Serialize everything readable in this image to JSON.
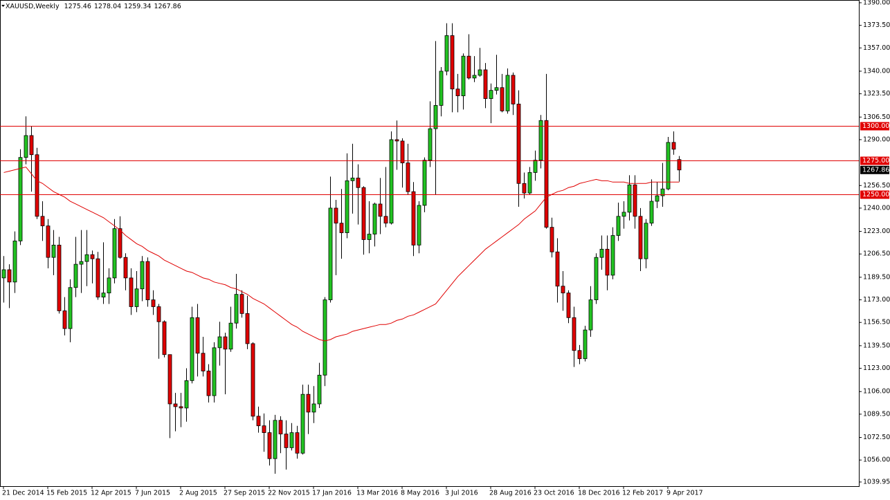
{
  "chart_data": {
    "type": "candlestick",
    "title": "XAUUSD,Weekly",
    "categories": [
      "21 Dec 2014",
      null,
      null,
      null,
      null,
      null,
      null,
      null,
      "15 Feb 2015",
      null,
      null,
      null,
      null,
      null,
      null,
      null,
      "12 Apr 2015",
      null,
      null,
      null,
      null,
      null,
      null,
      null,
      "7 Jun 2015",
      null,
      null,
      null,
      null,
      null,
      null,
      null,
      "2 Aug 2015",
      null,
      null,
      null,
      null,
      null,
      null,
      null,
      "27 Sep 2015",
      null,
      null,
      null,
      null,
      null,
      null,
      null,
      "22 Nov 2015",
      null,
      null,
      null,
      null,
      null,
      null,
      null,
      "17 Jan 2016",
      null,
      null,
      null,
      null,
      null,
      null,
      null,
      "13 Mar 2016",
      null,
      null,
      null,
      null,
      null,
      null,
      null,
      "8 May 2016",
      null,
      null,
      null,
      null,
      null,
      null,
      null,
      "3 Jul 2016",
      null,
      null,
      null,
      null,
      null,
      null,
      null,
      "28 Aug 2016",
      null,
      null,
      null,
      null,
      null,
      null,
      null,
      "23 Oct 2016",
      null,
      null,
      null,
      null,
      null,
      null,
      null,
      "18 Dec 2016",
      null,
      null,
      null,
      null,
      null,
      null,
      null,
      "12 Feb 2017",
      null,
      null,
      null,
      null,
      null,
      null,
      null,
      "9 Apr 2017",
      null,
      null
    ],
    "open": [
      1189,
      1195,
      1186,
      1216,
      1277,
      1293,
      1279,
      1234,
      1227,
      1204,
      1213,
      1165,
      1152,
      1182,
      1199,
      1201,
      1206,
      1203,
      1175,
      1178,
      1189,
      1225,
      1204,
      1189,
      1168,
      1181,
      1201,
      1173,
      1168,
      1157,
      1133,
      1097,
      1095,
      1094,
      1114,
      1160,
      1134,
      1121,
      1103,
      1138,
      1146,
      1137,
      1156,
      1177,
      1163,
      1141,
      1088,
      1081,
      1076,
      1057,
      1085,
      1075,
      1065,
      1076,
      1061,
      1104,
      1091,
      1097,
      1118,
      1173,
      1240,
      1229,
      1222,
      1260,
      1262,
      1255,
      1217,
      1221,
      1243,
      1234,
      1229,
      1290,
      1289,
      1273,
      1252,
      1213,
      1242,
      1275,
      1298,
      1315,
      1340,
      1366,
      1327,
      1322,
      1351,
      1335,
      1337,
      1341,
      1320,
      1326,
      1328,
      1311,
      1337,
      1316,
      1258,
      1251,
      1266,
      1275,
      1304,
      1226,
      1208,
      1183,
      1178,
      1160,
      1136,
      1130,
      1151,
      1173,
      1204,
      1210,
      1191,
      1220,
      1234,
      1237,
      1257,
      1234,
      1203,
      1229,
      1245,
      1249,
      1254,
      1288,
      1275.46
    ],
    "high": [
      1205,
      1199,
      1223,
      1283,
      1307,
      1300,
      1284,
      1245,
      1232,
      1224,
      1219,
      1175,
      1188,
      1219,
      1224,
      1224,
      1209,
      1208,
      1215,
      1196,
      1232,
      1234,
      1207,
      1196,
      1194,
      1205,
      1204,
      1180,
      1170,
      1158,
      1133,
      1105,
      1105,
      1123,
      1168,
      1170,
      1146,
      1126,
      1142,
      1157,
      1149,
      1168,
      1192,
      1180,
      1176,
      1142,
      1095,
      1090,
      1085,
      1089,
      1088,
      1085,
      1083,
      1081,
      1111,
      1111,
      1110,
      1127,
      1175,
      1263,
      1246,
      1254,
      1280,
      1287,
      1272,
      1256,
      1245,
      1244,
      1262,
      1270,
      1296,
      1304,
      1291,
      1287,
      1259,
      1245,
      1277,
      1318,
      1362,
      1343,
      1375,
      1375,
      1338,
      1353,
      1367,
      1351,
      1357,
      1346,
      1331,
      1352,
      1338,
      1342,
      1339,
      1326,
      1266,
      1270,
      1282,
      1308,
      1338,
      1233,
      1218,
      1194,
      1180,
      1168,
      1140,
      1154,
      1183,
      1207,
      1220,
      1220,
      1226,
      1244,
      1245,
      1264,
      1264,
      1240,
      1232,
      1261,
      1259,
      1273,
      1292,
      1296,
      1278.04
    ],
    "low": [
      1171,
      1167,
      1178,
      1213,
      1272,
      1252,
      1232,
      1216,
      1196,
      1191,
      1163,
      1147,
      1142,
      1175,
      1178,
      1183,
      1185,
      1173,
      1170,
      1170,
      1185,
      1203,
      1180,
      1162,
      1164,
      1172,
      1168,
      1162,
      1130,
      1131,
      1072,
      1077,
      1080,
      1084,
      1112,
      1117,
      1117,
      1098,
      1098,
      1125,
      1104,
      1135,
      1152,
      1160,
      1137,
      1085,
      1076,
      1062,
      1052,
      1046,
      1061,
      1049,
      1063,
      1057,
      1060,
      1075,
      1083,
      1094,
      1110,
      1171,
      1191,
      1203,
      1218,
      1236,
      1228,
      1206,
      1207,
      1212,
      1221,
      1226,
      1228,
      1268,
      1255,
      1250,
      1205,
      1207,
      1237,
      1270,
      1250,
      1307,
      1337,
      1310,
      1310,
      1312,
      1334,
      1332,
      1336,
      1313,
      1302,
      1323,
      1310,
      1309,
      1308,
      1241,
      1247,
      1250,
      1260,
      1269,
      1225,
      1204,
      1171,
      1165,
      1156,
      1124,
      1126,
      1128,
      1146,
      1170,
      1195,
      1180,
      1188,
      1216,
      1225,
      1231,
      1225,
      1194,
      1196,
      1227,
      1240,
      1241,
      1253,
      1279,
      1259.34
    ],
    "close": [
      1195,
      1186,
      1216,
      1277,
      1293,
      1279,
      1234,
      1227,
      1204,
      1213,
      1165,
      1152,
      1182,
      1199,
      1201,
      1206,
      1203,
      1175,
      1178,
      1189,
      1225,
      1204,
      1189,
      1168,
      1181,
      1201,
      1173,
      1168,
      1157,
      1133,
      1097,
      1095,
      1094,
      1114,
      1160,
      1134,
      1121,
      1103,
      1138,
      1146,
      1137,
      1156,
      1177,
      1163,
      1141,
      1088,
      1081,
      1076,
      1057,
      1085,
      1075,
      1065,
      1076,
      1061,
      1104,
      1091,
      1097,
      1118,
      1173,
      1240,
      1229,
      1222,
      1260,
      1262,
      1255,
      1217,
      1221,
      1243,
      1234,
      1229,
      1290,
      1289,
      1273,
      1252,
      1213,
      1242,
      1275,
      1298,
      1315,
      1340,
      1366,
      1327,
      1322,
      1351,
      1335,
      1337,
      1341,
      1320,
      1326,
      1328,
      1311,
      1337,
      1316,
      1258,
      1251,
      1266,
      1275,
      1304,
      1226,
      1208,
      1183,
      1178,
      1160,
      1136,
      1130,
      1151,
      1173,
      1204,
      1210,
      1191,
      1220,
      1234,
      1237,
      1257,
      1234,
      1203,
      1229,
      1245,
      1249,
      1254,
      1288,
      1283,
      1267.86
    ],
    "ma": [
      1266,
      1267,
      1268,
      1269,
      1270,
      1265,
      1260,
      1258,
      1255,
      1252,
      1250,
      1248,
      1245,
      1243,
      1241,
      1239,
      1237,
      1235,
      1233,
      1230,
      1227,
      1224,
      1220,
      1217,
      1214,
      1212,
      1209,
      1207,
      1205,
      1202,
      1200,
      1198,
      1196,
      1194,
      1193,
      1191,
      1189,
      1188,
      1186,
      1185,
      1184,
      1182,
      1181,
      1179,
      1177,
      1174,
      1172,
      1170,
      1167,
      1164,
      1161,
      1158,
      1155,
      1153,
      1150,
      1148,
      1146,
      1144,
      1143,
      1144,
      1146,
      1147,
      1148,
      1150,
      1151,
      1152,
      1153,
      1154,
      1155,
      1155,
      1156,
      1158,
      1159,
      1161,
      1162,
      1164,
      1166,
      1168,
      1170,
      1175,
      1180,
      1185,
      1190,
      1194,
      1198,
      1202,
      1206,
      1210,
      1213,
      1216,
      1219,
      1222,
      1225,
      1228,
      1232,
      1235,
      1238,
      1243,
      1248,
      1250,
      1252,
      1253,
      1255,
      1256,
      1258,
      1259,
      1260,
      1261,
      1260,
      1260,
      1259,
      1259,
      1259,
      1258,
      1258,
      1258,
      1258,
      1259,
      1259,
      1259,
      1259,
      1259,
      1259
    ],
    "up_color": "#22c222",
    "down_color": "#e00000",
    "ma_color": "#e00000",
    "level_color": "#e00000",
    "levels": [
      {
        "value": 1300,
        "label": "1300.00"
      },
      {
        "value": 1275,
        "label": "1275.00"
      },
      {
        "value": 1250,
        "label": "1250.00"
      }
    ],
    "ylim": [
      1036.9,
      1392.0
    ],
    "yticks": [
      {
        "value": 1390,
        "label": "1390.00"
      },
      {
        "value": 1373.5,
        "label": "1373.50"
      },
      {
        "value": 1357,
        "label": "1357.00"
      },
      {
        "value": 1340,
        "label": "1340.00"
      },
      {
        "value": 1323.5,
        "label": "1323.50"
      },
      {
        "value": 1306.5,
        "label": "1306.50"
      },
      {
        "value": 1290,
        "label": "1290.00"
      },
      {
        "value": 1256.5,
        "label": "1256.50"
      },
      {
        "value": 1240,
        "label": "1240.00"
      },
      {
        "value": 1223,
        "label": "1223.00"
      },
      {
        "value": 1206.5,
        "label": "1206.50"
      },
      {
        "value": 1189.5,
        "label": "1189.50"
      },
      {
        "value": 1173,
        "label": "1173.00"
      },
      {
        "value": 1156.5,
        "label": "1156.50"
      },
      {
        "value": 1139.5,
        "label": "1139.50"
      },
      {
        "value": 1123,
        "label": "1123.00"
      },
      {
        "value": 1106,
        "label": "1106.00"
      },
      {
        "value": 1089.5,
        "label": "1089.50"
      },
      {
        "value": 1072.5,
        "label": "1072.50"
      },
      {
        "value": 1056,
        "label": "1056.00"
      },
      {
        "value": 1039.95,
        "label": "1039.95"
      }
    ]
  }
}
